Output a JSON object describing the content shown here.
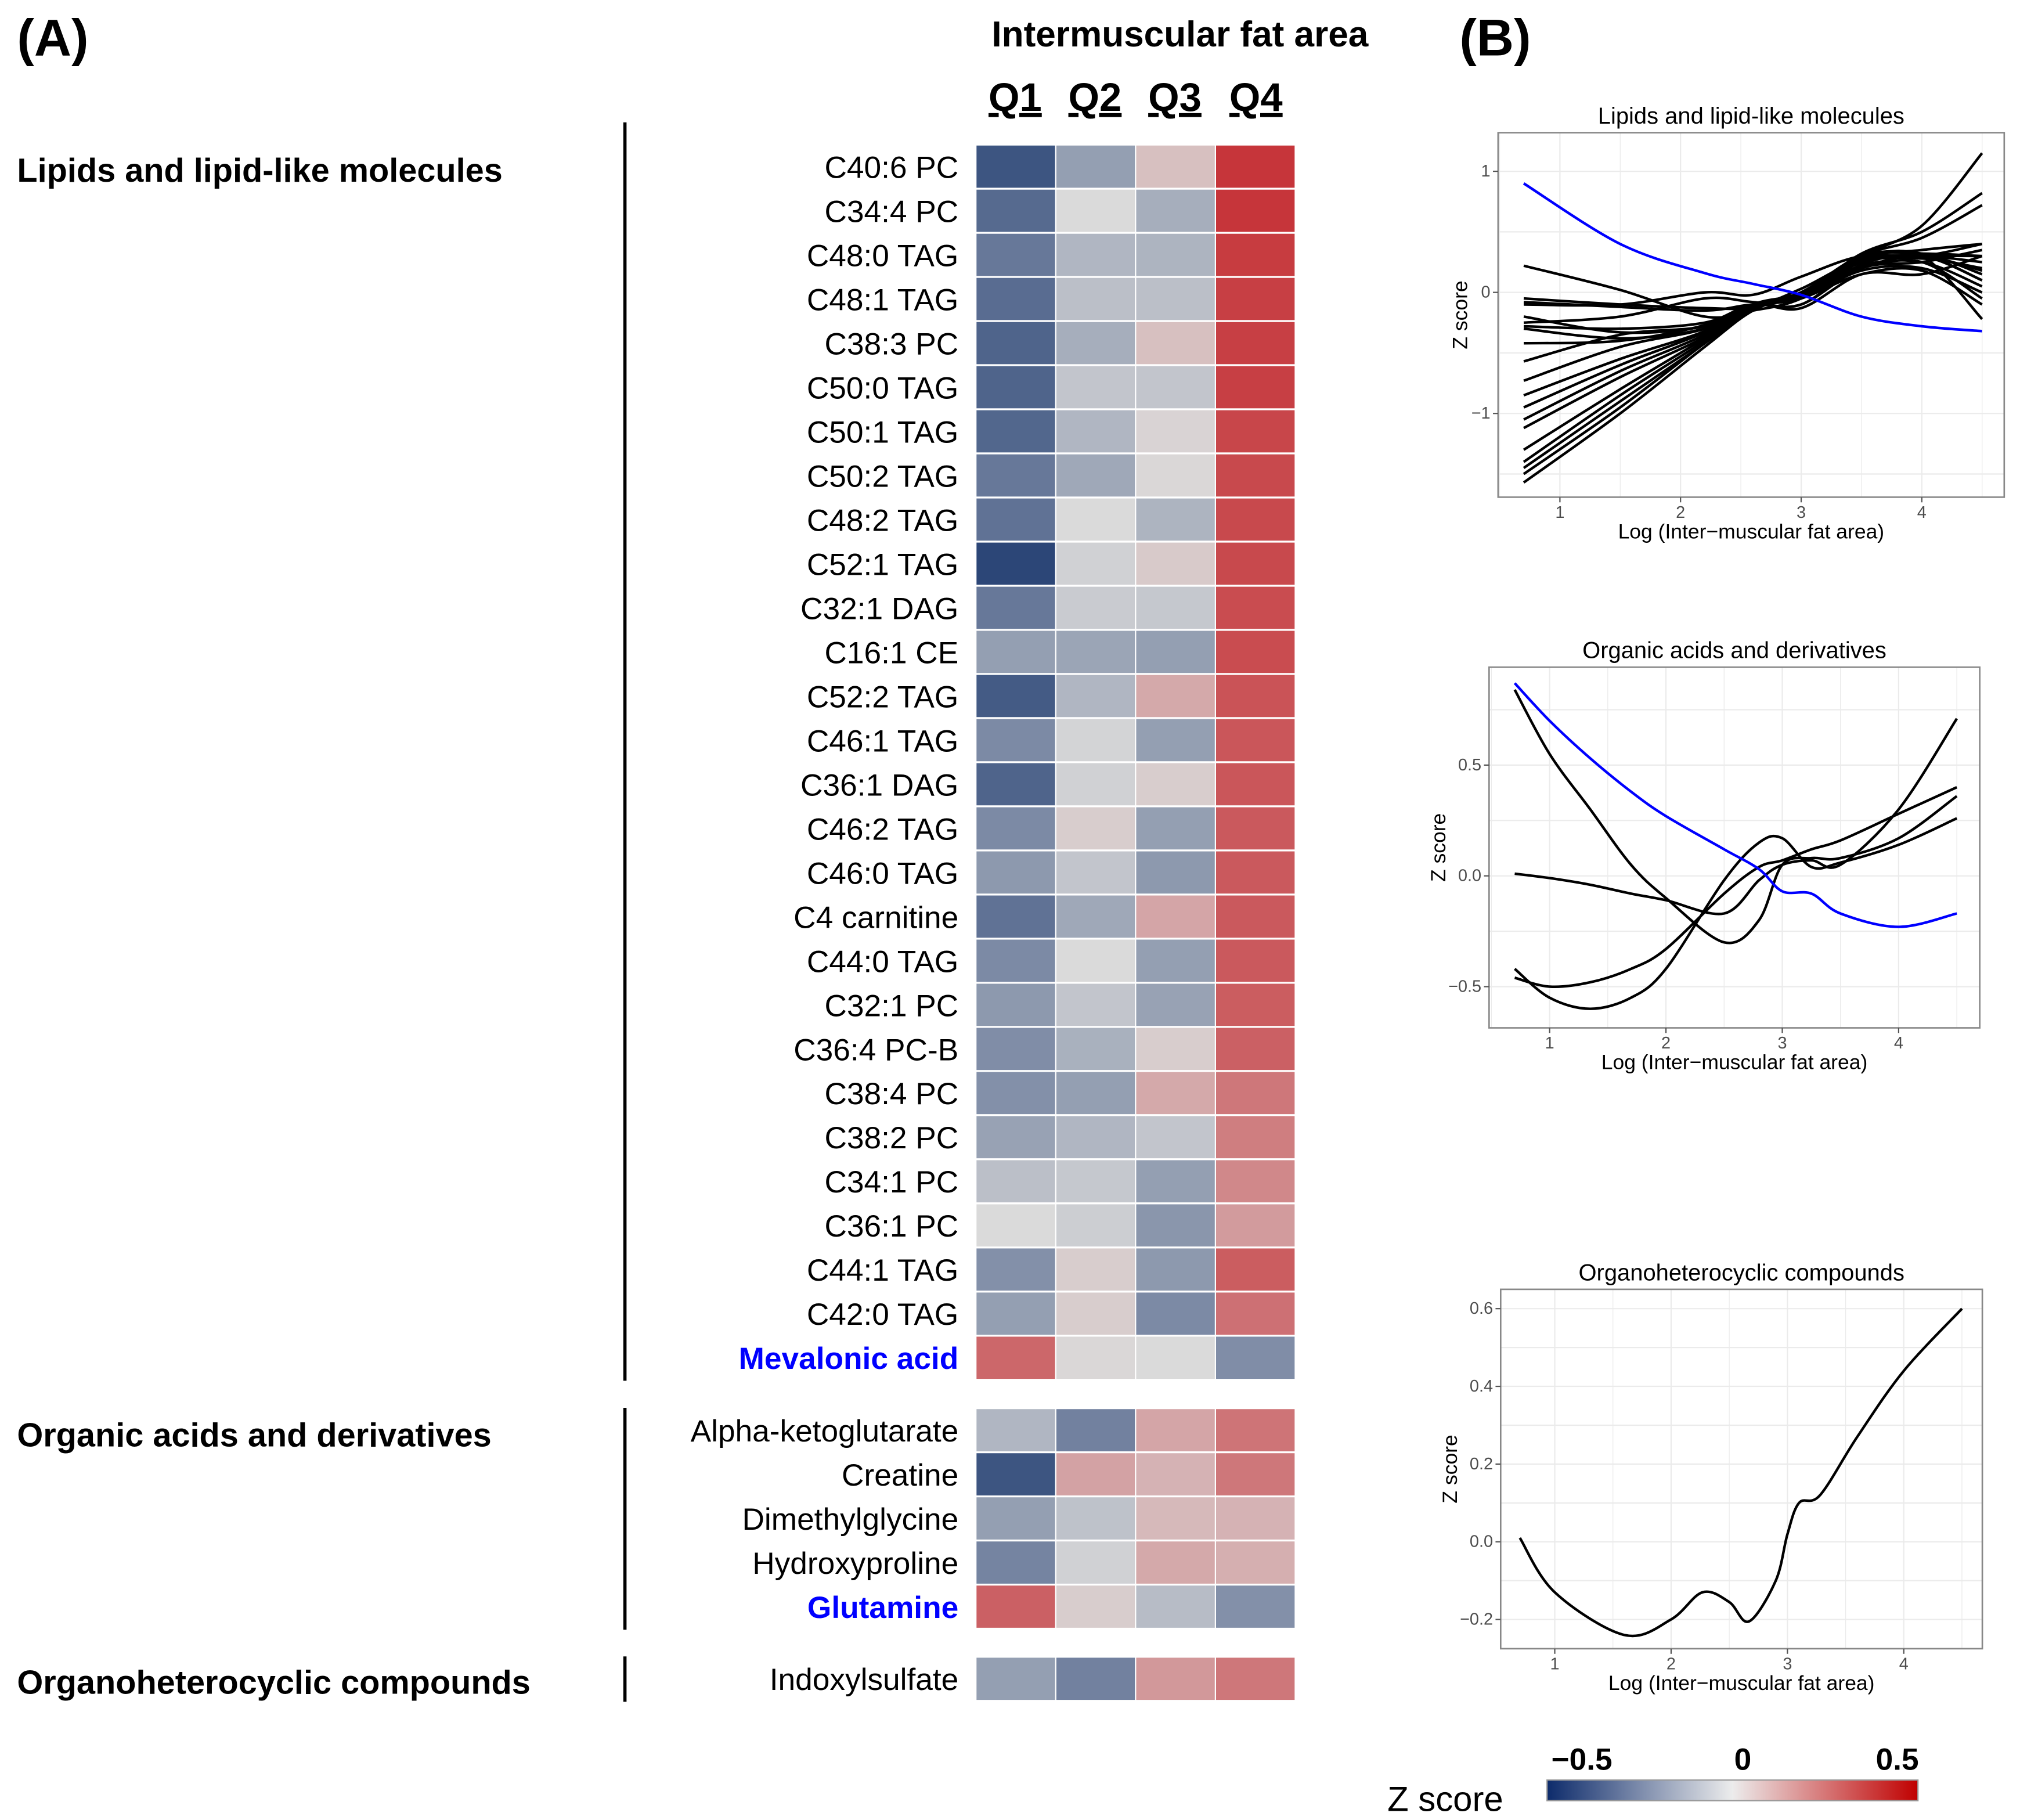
{
  "labels": {
    "panel_a": "(A)",
    "panel_b": "(B)"
  },
  "chart_data": [
    {
      "type": "heatmap",
      "title": "Intermuscular fat area",
      "columns": [
        "Q1",
        "Q2",
        "Q3",
        "Q4"
      ],
      "value_range": [
        -0.5,
        0.5
      ],
      "colors": {
        "low": "#2c4677",
        "mid": "#dadada",
        "high": "#c6353a",
        "highlight_text": "#0000ff"
      },
      "groups": [
        {
          "name": "Lipids and lipid-like molecules",
          "rows": [
            {
              "label": "C40:6 PC",
              "values": [
                -0.45,
                -0.2,
                0.08,
                0.5
              ]
            },
            {
              "label": "C34:4 PC",
              "values": [
                -0.38,
                0.0,
                -0.15,
                0.5
              ]
            },
            {
              "label": "C48:0 TAG",
              "values": [
                -0.33,
                -0.12,
                -0.13,
                0.48
              ]
            },
            {
              "label": "C48:1 TAG",
              "values": [
                -0.37,
                -0.09,
                -0.09,
                0.47
              ]
            },
            {
              "label": "C38:3 PC",
              "values": [
                -0.4,
                -0.15,
                0.08,
                0.47
              ]
            },
            {
              "label": "C50:0 TAG",
              "values": [
                -0.4,
                -0.07,
                -0.07,
                0.47
              ]
            },
            {
              "label": "C50:1 TAG",
              "values": [
                -0.39,
                -0.12,
                0.02,
                0.45
              ]
            },
            {
              "label": "C50:2 TAG",
              "values": [
                -0.33,
                -0.17,
                0.01,
                0.44
              ]
            },
            {
              "label": "C48:2 TAG",
              "values": [
                -0.35,
                0.0,
                -0.13,
                0.44
              ]
            },
            {
              "label": "C52:1 TAG",
              "values": [
                -0.5,
                -0.03,
                0.05,
                0.44
              ]
            },
            {
              "label": "C32:1 DAG",
              "values": [
                -0.33,
                -0.05,
                -0.06,
                0.43
              ]
            },
            {
              "label": "C16:1 CE",
              "values": [
                -0.2,
                -0.18,
                -0.2,
                0.43
              ]
            },
            {
              "label": "C52:2 TAG",
              "values": [
                -0.43,
                -0.12,
                0.15,
                0.41
              ]
            },
            {
              "label": "C46:1 TAG",
              "values": [
                -0.27,
                -0.02,
                -0.2,
                0.4
              ]
            },
            {
              "label": "C36:1 DAG",
              "values": [
                -0.4,
                -0.03,
                0.04,
                0.4
              ]
            },
            {
              "label": "C46:2 TAG",
              "values": [
                -0.27,
                0.04,
                -0.2,
                0.39
              ]
            },
            {
              "label": "C46:0 TAG",
              "values": [
                -0.22,
                -0.07,
                -0.22,
                0.39
              ]
            },
            {
              "label": "C4 carnitine",
              "values": [
                -0.35,
                -0.17,
                0.16,
                0.39
              ]
            },
            {
              "label": "C44:0 TAG",
              "values": [
                -0.27,
                0.0,
                -0.2,
                0.39
              ]
            },
            {
              "label": "C32:1 PC",
              "values": [
                -0.22,
                -0.07,
                -0.19,
                0.38
              ]
            },
            {
              "label": "C36:4 PC-B",
              "values": [
                -0.26,
                -0.14,
                0.04,
                0.37
              ]
            },
            {
              "label": "C38:4 PC",
              "values": [
                -0.25,
                -0.2,
                0.15,
                0.3
              ]
            },
            {
              "label": "C38:2 PC",
              "values": [
                -0.19,
                -0.12,
                -0.07,
                0.28
              ]
            },
            {
              "label": "C34:1 PC",
              "values": [
                -0.09,
                -0.06,
                -0.2,
                0.25
              ]
            },
            {
              "label": "C36:1 PC",
              "values": [
                0.0,
                -0.04,
                -0.23,
                0.19
              ]
            },
            {
              "label": "C44:1 TAG",
              "values": [
                -0.25,
                0.04,
                -0.22,
                0.38
              ]
            },
            {
              "label": "C42:0 TAG",
              "values": [
                -0.2,
                0.04,
                -0.27,
                0.32
              ]
            },
            {
              "label": "Mevalonic acid",
              "values": [
                0.35,
                0.01,
                0.0,
                -0.26
              ],
              "highlight": true
            }
          ]
        },
        {
          "name": "Organic acids and derivatives",
          "rows": [
            {
              "label": "Alpha-ketoglutarate",
              "values": [
                -0.12,
                -0.3,
                0.16,
                0.31
              ]
            },
            {
              "label": "Creatine",
              "values": [
                -0.45,
                0.17,
                0.12,
                0.3
              ]
            },
            {
              "label": "Dimethylglycine",
              "values": [
                -0.2,
                -0.08,
                0.1,
                0.12
              ]
            },
            {
              "label": "Hydroxyproline",
              "values": [
                -0.29,
                -0.03,
                0.15,
                0.13
              ]
            },
            {
              "label": "Glutamine",
              "values": [
                0.37,
                0.04,
                -0.1,
                -0.25
              ],
              "highlight": true
            }
          ]
        },
        {
          "name": "Organoheterocyclic compounds",
          "rows": [
            {
              "label": "Indoxylsulfate",
              "values": [
                -0.2,
                -0.3,
                0.2,
                0.3
              ]
            }
          ]
        }
      ],
      "colorbar": {
        "title": "Z score",
        "tick_labels": [
          "−0.5",
          "0",
          "0.5"
        ],
        "colors": [
          "#0d2b6b",
          "#ececec",
          "#c00000"
        ]
      }
    },
    {
      "type": "line",
      "title": "Lipids and lipid-like molecules",
      "xlabel": "Log (Inter−muscular fat area)",
      "ylabel": "Z score",
      "xticks": [
        1,
        2,
        3,
        4
      ],
      "xtick_labels": [
        "1",
        "2",
        "3",
        "4"
      ],
      "yticks": [
        -1,
        0,
        1
      ],
      "ytick_labels": [
        "−1",
        "0",
        "1"
      ],
      "grid": true,
      "x": [
        0.7,
        1.5,
        2.2,
        2.6,
        3.0,
        3.5,
        4.0,
        4.5
      ],
      "series": [
        {
          "color": "#0000ff",
          "values": [
            0.9,
            0.4,
            0.16,
            0.07,
            -0.02,
            -0.2,
            -0.28,
            -0.32
          ]
        },
        {
          "color": "#000000",
          "values": [
            -1.57,
            -1.0,
            -0.45,
            -0.15,
            0,
            0.3,
            0.55,
            1.15
          ]
        },
        {
          "color": "#000000",
          "values": [
            -1.5,
            -0.95,
            -0.42,
            -0.14,
            -0.02,
            0.32,
            0.5,
            0.82
          ]
        },
        {
          "color": "#000000",
          "values": [
            -1.45,
            -0.9,
            -0.42,
            -0.13,
            -0.01,
            0.3,
            0.45,
            0.72
          ]
        },
        {
          "color": "#000000",
          "values": [
            -1.4,
            -0.85,
            -0.4,
            -0.12,
            -0.03,
            0.28,
            0.35,
            0.4
          ]
        },
        {
          "color": "#000000",
          "values": [
            -1.3,
            -0.8,
            -0.38,
            -0.12,
            -0.02,
            0.3,
            0.32,
            0.3
          ]
        },
        {
          "color": "#000000",
          "values": [
            -1.12,
            -0.7,
            -0.37,
            -0.12,
            -0.03,
            0.27,
            0.3,
            0.25
          ]
        },
        {
          "color": "#000000",
          "values": [
            -1.05,
            -0.65,
            -0.35,
            -0.1,
            -0.02,
            0.25,
            0.28,
            0.2
          ]
        },
        {
          "color": "#000000",
          "values": [
            -0.95,
            -0.6,
            -0.33,
            -0.1,
            0,
            0.3,
            0.32,
            0.15
          ]
        },
        {
          "color": "#000000",
          "values": [
            -0.85,
            -0.55,
            -0.32,
            -0.1,
            -0.03,
            0.2,
            0.3,
            0.1
          ]
        },
        {
          "color": "#000000",
          "values": [
            -0.73,
            -0.45,
            -0.3,
            -0.1,
            -0.02,
            0.22,
            0.25,
            0.05
          ]
        },
        {
          "color": "#000000",
          "values": [
            -0.57,
            -0.35,
            -0.28,
            -0.1,
            -0.05,
            0.18,
            0.2,
            0
          ]
        },
        {
          "color": "#000000",
          "values": [
            -0.42,
            -0.4,
            -0.27,
            -0.1,
            -0.03,
            0.2,
            0.25,
            -0.05
          ]
        },
        {
          "color": "#000000",
          "values": [
            -0.3,
            -0.38,
            -0.3,
            -0.12,
            -0.05,
            0.15,
            0.18,
            -0.1
          ]
        },
        {
          "color": "#000000",
          "values": [
            -0.2,
            -0.33,
            -0.28,
            -0.12,
            0,
            0.28,
            0.3,
            -0.22
          ]
        },
        {
          "color": "#000000",
          "values": [
            -0.28,
            -0.3,
            -0.25,
            -0.1,
            -0.13,
            0.15,
            0.15,
            0.3
          ]
        },
        {
          "color": "#000000",
          "values": [
            -0.1,
            -0.1,
            0,
            -0.02,
            0.13,
            0.3,
            0.3,
            0.4
          ]
        },
        {
          "color": "#000000",
          "values": [
            -0.08,
            -0.12,
            -0.15,
            -0.1,
            -0.1,
            0.2,
            0.25,
            0.35
          ]
        },
        {
          "color": "#000000",
          "values": [
            -0.05,
            -0.1,
            -0.13,
            -0.12,
            0.03,
            0.27,
            0.3,
            0.3
          ]
        },
        {
          "color": "#000000",
          "values": [
            0.22,
            0.02,
            -0.2,
            -0.15,
            -0.05,
            0.25,
            0.3,
            0.18
          ]
        },
        {
          "color": "#000000",
          "values": [
            -0.25,
            -0.2,
            -0.05,
            -0.08,
            -0.1,
            0.23,
            0.3,
            0.1
          ]
        }
      ]
    },
    {
      "type": "line",
      "title": "Organic acids and derivatives",
      "xlabel": "Log (Inter−muscular fat area)",
      "ylabel": "Z score",
      "xticks": [
        1,
        2,
        3,
        4
      ],
      "xtick_labels": [
        "1",
        "2",
        "3",
        "4"
      ],
      "yticks": [
        -0.5,
        0,
        0.5
      ],
      "ytick_labels": [
        "−0.5",
        "0.0",
        "0.5"
      ],
      "grid": true,
      "x": [
        0.7,
        1.0,
        1.35,
        1.7,
        2.0,
        2.5,
        2.8,
        3.0,
        3.25,
        3.5,
        4.0,
        4.5
      ],
      "series": [
        {
          "color": "#0000ff",
          "values": [
            0.87,
            0.7,
            0.53,
            0.38,
            0.27,
            0.12,
            0.03,
            -0.07,
            -0.08,
            -0.17,
            -0.23,
            -0.17
          ]
        },
        {
          "color": "#000000",
          "values": [
            0.84,
            0.55,
            0.3,
            0.05,
            -0.1,
            -0.3,
            -0.2,
            0.05,
            0.08,
            0.08,
            0.17,
            0.36
          ]
        },
        {
          "color": "#000000",
          "values": [
            0.01,
            -0.01,
            -0.04,
            -0.08,
            -0.11,
            -0.17,
            -0.02,
            0.05,
            0.07,
            0.05,
            0.3,
            0.71
          ]
        },
        {
          "color": "#000000",
          "values": [
            -0.46,
            -0.5,
            -0.48,
            -0.42,
            -0.33,
            -0.08,
            0.04,
            0.07,
            0.12,
            0.16,
            0.28,
            0.4
          ]
        },
        {
          "color": "#000000",
          "values": [
            -0.42,
            -0.55,
            -0.6,
            -0.55,
            -0.42,
            -0.02,
            0.15,
            0.17,
            0.04,
            0.06,
            0.14,
            0.26
          ]
        }
      ]
    },
    {
      "type": "line",
      "title": "Organoheterocyclic compounds",
      "xlabel": "Log (Inter−muscular fat area)",
      "ylabel": "Z score",
      "xticks": [
        1,
        2,
        3,
        4
      ],
      "xtick_labels": [
        "1",
        "2",
        "3",
        "4"
      ],
      "yticks": [
        -0.2,
        0,
        0.2,
        0.4,
        0.6
      ],
      "ytick_labels": [
        "−0.2",
        "0.0",
        "0.2",
        "0.4",
        "0.6"
      ],
      "grid": true,
      "x": [
        0.7,
        1.0,
        1.6,
        2.0,
        2.27,
        2.5,
        2.67,
        2.9,
        3.0,
        3.1,
        3.28,
        3.6,
        4.0,
        4.5
      ],
      "series": [
        {
          "color": "#000000",
          "values": [
            0.01,
            -0.13,
            -0.24,
            -0.2,
            -0.13,
            -0.155,
            -0.205,
            -0.1,
            0.02,
            0.1,
            0.12,
            0.27,
            0.44,
            0.6
          ]
        }
      ]
    }
  ]
}
